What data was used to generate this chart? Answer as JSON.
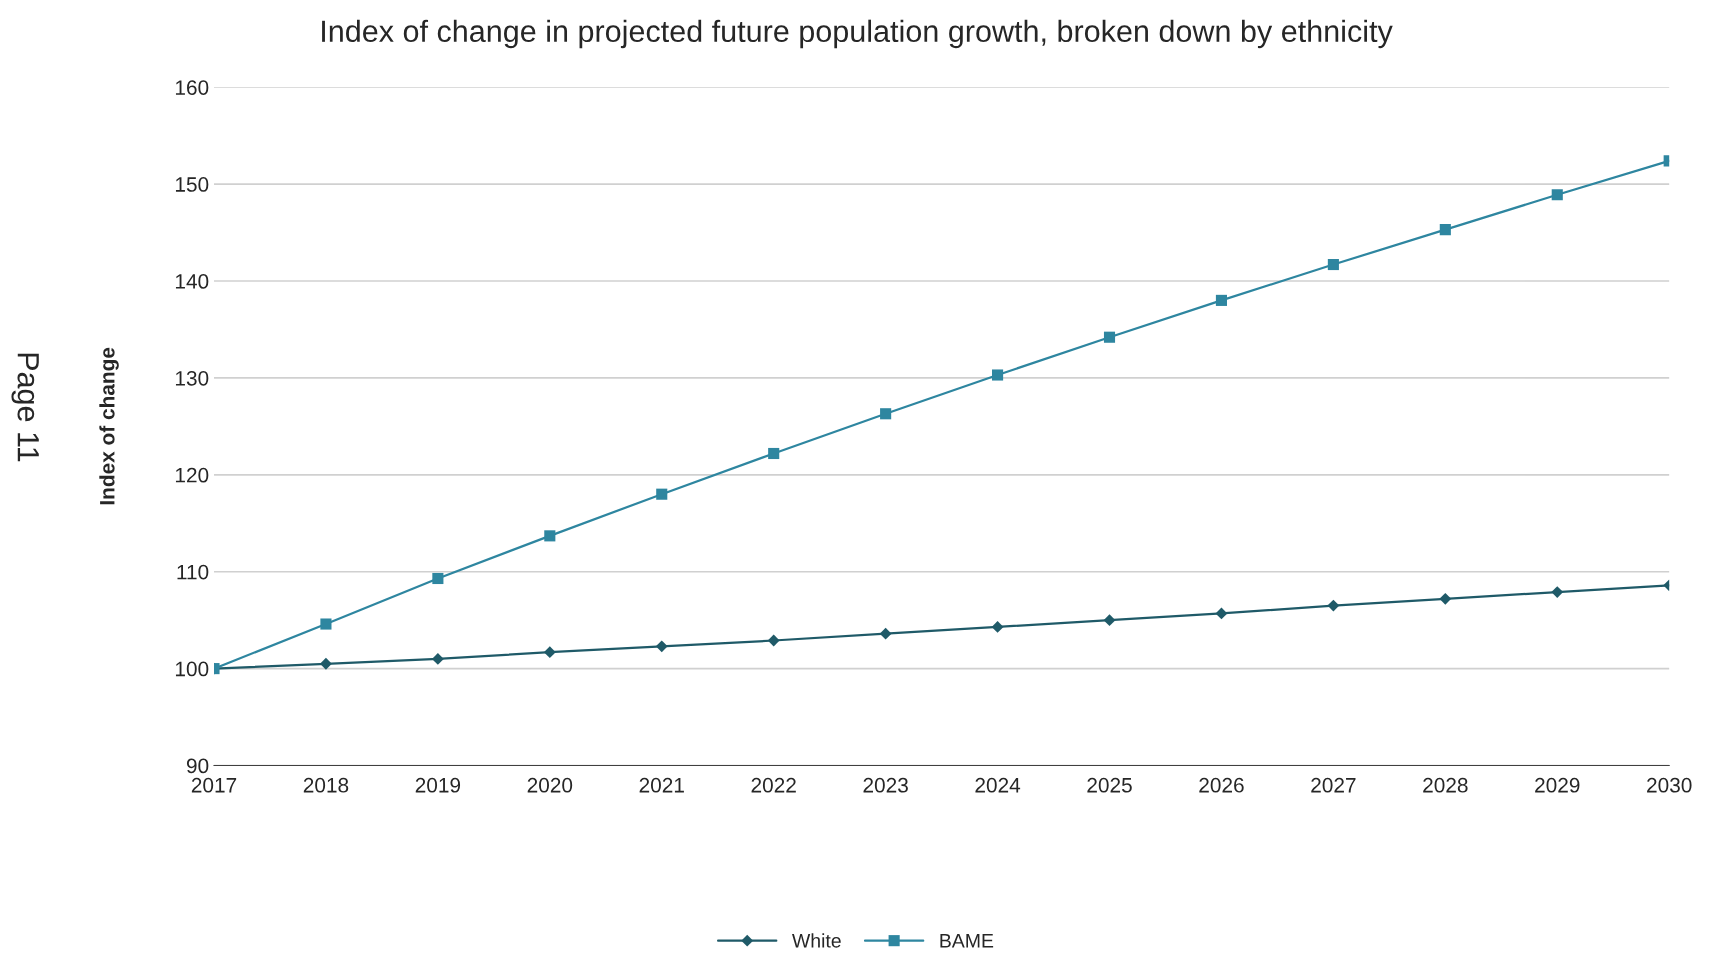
{
  "chart_data": {
    "type": "line",
    "title": "Index of change in projected future population growth, broken down by ethnicity",
    "ylabel": "Index of change",
    "x": [
      2017,
      2018,
      2019,
      2020,
      2021,
      2022,
      2023,
      2024,
      2025,
      2026,
      2027,
      2028,
      2029,
      2030
    ],
    "series": [
      {
        "name": "White",
        "color": "#1f5a68",
        "marker": "diamond",
        "values": [
          100,
          100.5,
          101.0,
          101.7,
          102.3,
          102.9,
          103.6,
          104.3,
          105.0,
          105.7,
          106.5,
          107.2,
          107.9,
          108.6
        ]
      },
      {
        "name": "BAME",
        "color": "#2e86a0",
        "marker": "square",
        "values": [
          100,
          104.6,
          109.3,
          113.7,
          118.0,
          122.2,
          126.3,
          130.3,
          134.2,
          138.0,
          141.7,
          145.3,
          148.9,
          152.4
        ]
      }
    ],
    "xlim": [
      2017,
      2030
    ],
    "xticks": [
      2017,
      2018,
      2019,
      2020,
      2021,
      2022,
      2023,
      2024,
      2025,
      2026,
      2027,
      2028,
      2029,
      2030
    ],
    "ylim": [
      90,
      160
    ],
    "yticks": [
      90,
      100,
      110,
      120,
      130,
      140,
      150,
      160
    ],
    "grid": "y",
    "legend": "bottom",
    "line_style": "solid",
    "annotations": [
      "Page 11"
    ]
  }
}
